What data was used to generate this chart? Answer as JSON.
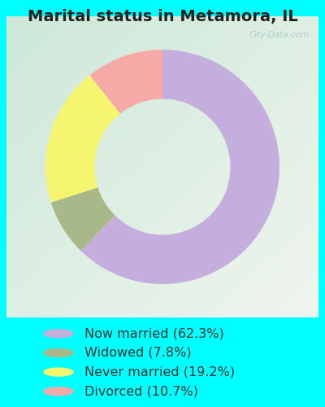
{
  "title": "Marital status in Metamora, IL",
  "categories": [
    "Now married",
    "Widowed",
    "Never married",
    "Divorced"
  ],
  "values": [
    62.3,
    7.8,
    19.2,
    10.7
  ],
  "colors": [
    "#c4aede",
    "#a8b888",
    "#f5f570",
    "#f5aaa8"
  ],
  "legend_labels": [
    "Now married (62.3%)",
    "Widowed (7.8%)",
    "Never married (19.2%)",
    "Divorced (10.7%)"
  ],
  "bg_outer": "#00ffff",
  "watermark": "City-Data.com",
  "title_fontsize": 14,
  "legend_fontsize": 11.5,
  "donut_width": 0.42,
  "chart_bg_top_left": "#b8ddd0",
  "chart_bg_bottom_right": "#e8f5e8",
  "start_angle": 90
}
